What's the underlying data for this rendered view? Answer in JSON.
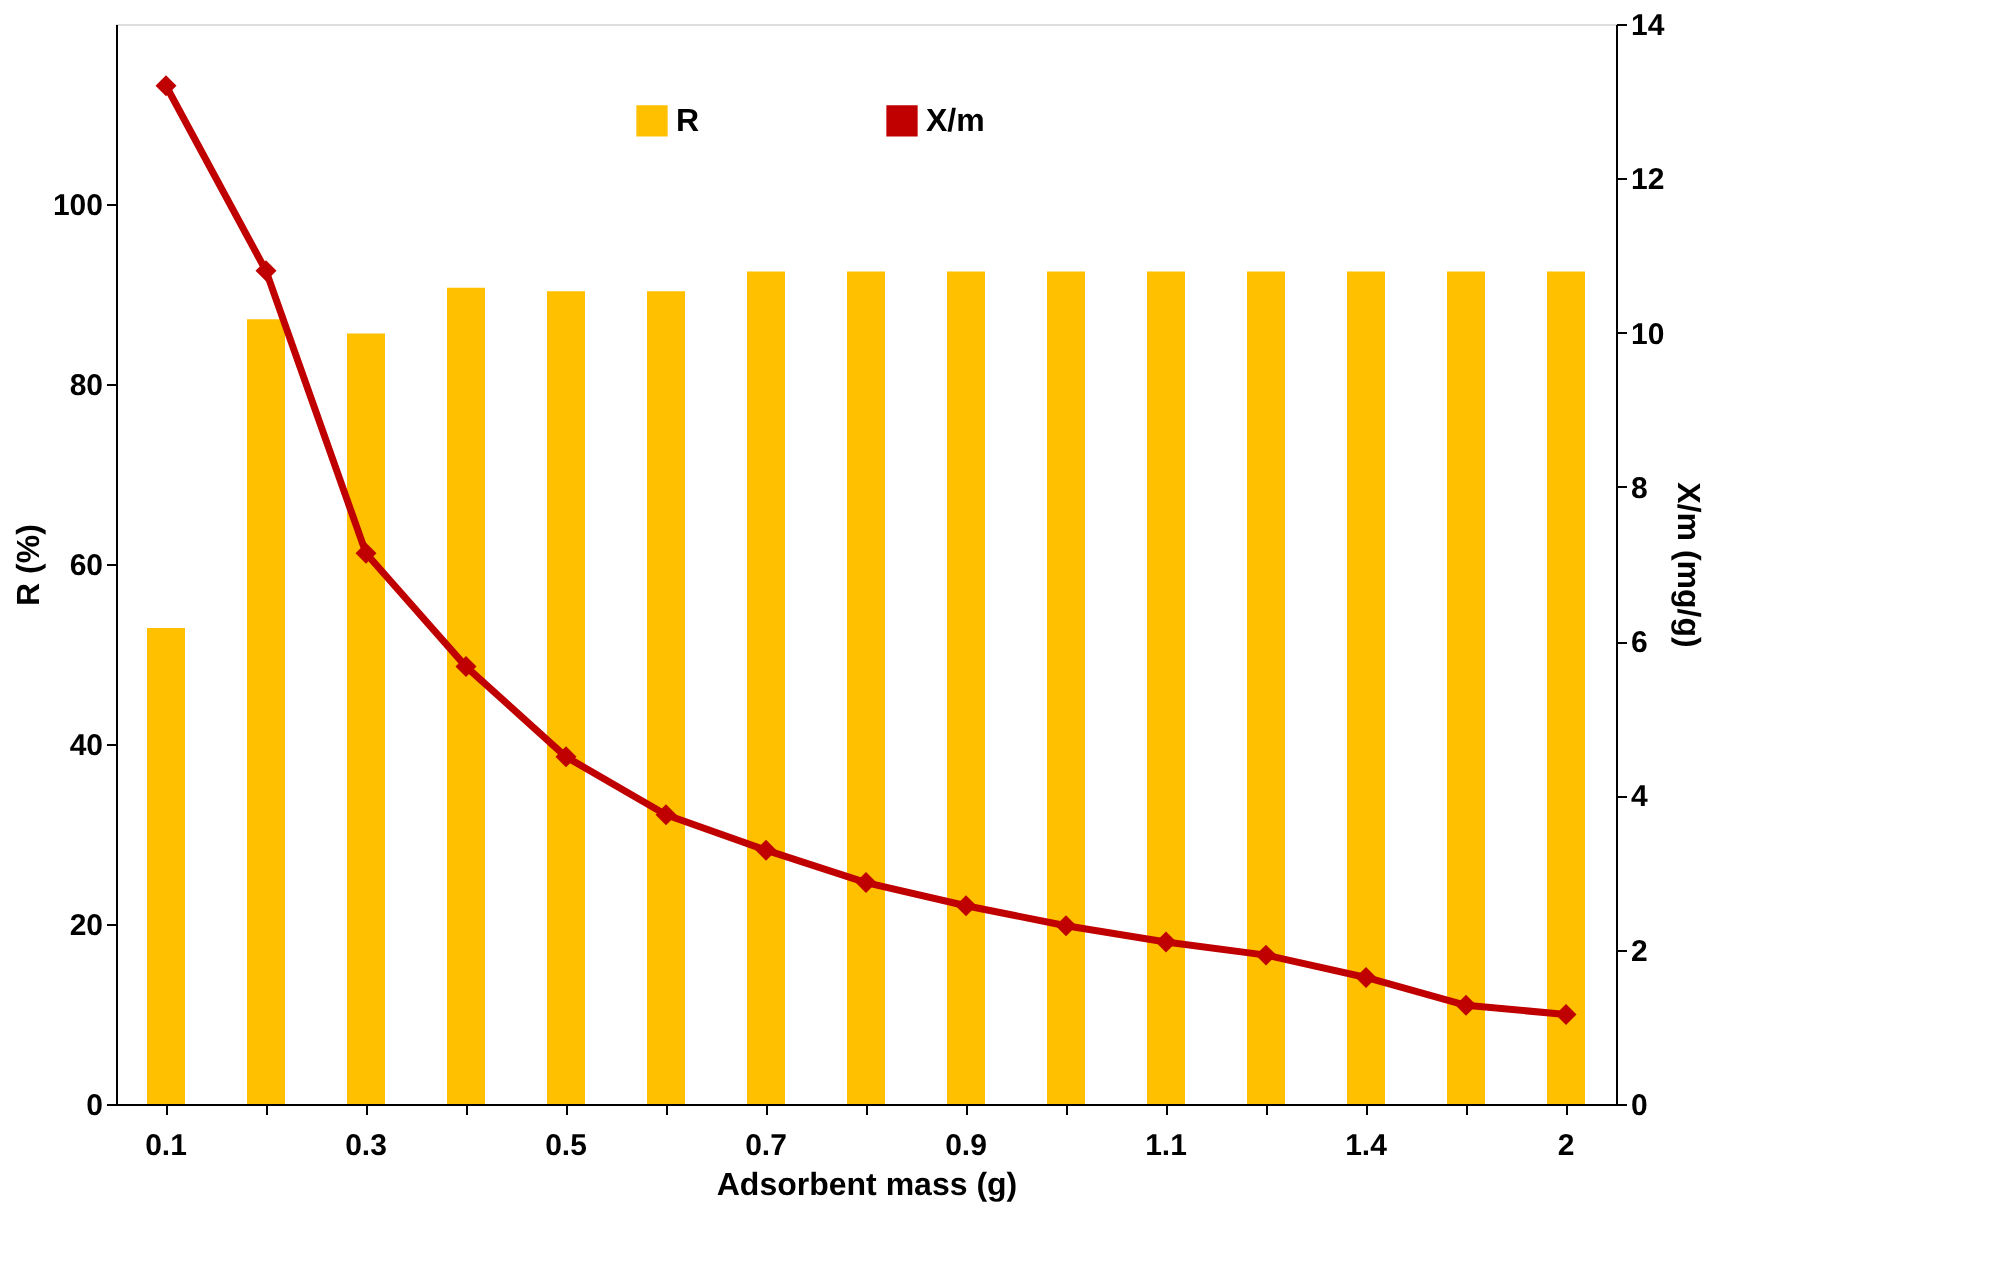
{
  "chart_data": {
    "type": "bar",
    "xlabel": "Adsorbent mass (g)",
    "ylabel": "R (%)",
    "y2label": "X/m (mg/g)",
    "categories": [
      "0.1",
      null,
      "0.3",
      null,
      "0.5",
      null,
      "0.7",
      null,
      "0.9",
      null,
      "1.1",
      null,
      "1.4",
      null,
      "2"
    ],
    "series": [
      {
        "name": "R",
        "color": "#ffc000",
        "values": [
          52.9,
          87.2,
          85.6,
          90.7,
          90.3,
          90.3,
          92.5,
          92.5,
          92.5,
          92.5,
          92.5,
          92.5,
          92.5,
          92.5,
          92.5
        ]
      },
      {
        "name": "X/m",
        "color": "#c00000",
        "type": "line",
        "axis": "y2",
        "marker": "diamond",
        "values": [
          13.2,
          10.8,
          7.14,
          5.67,
          4.5,
          3.75,
          3.29,
          2.87,
          2.57,
          2.31,
          2.1,
          1.93,
          1.64,
          1.28,
          1.16
        ]
      }
    ],
    "ylim": [
      0,
      120
    ],
    "yticks": [
      0,
      20,
      40,
      60,
      80,
      100
    ],
    "y2lim": [
      0,
      14
    ],
    "y2ticks": [
      0,
      2,
      4,
      6,
      8,
      10,
      12,
      14
    ],
    "legend": "top",
    "grid": false
  }
}
